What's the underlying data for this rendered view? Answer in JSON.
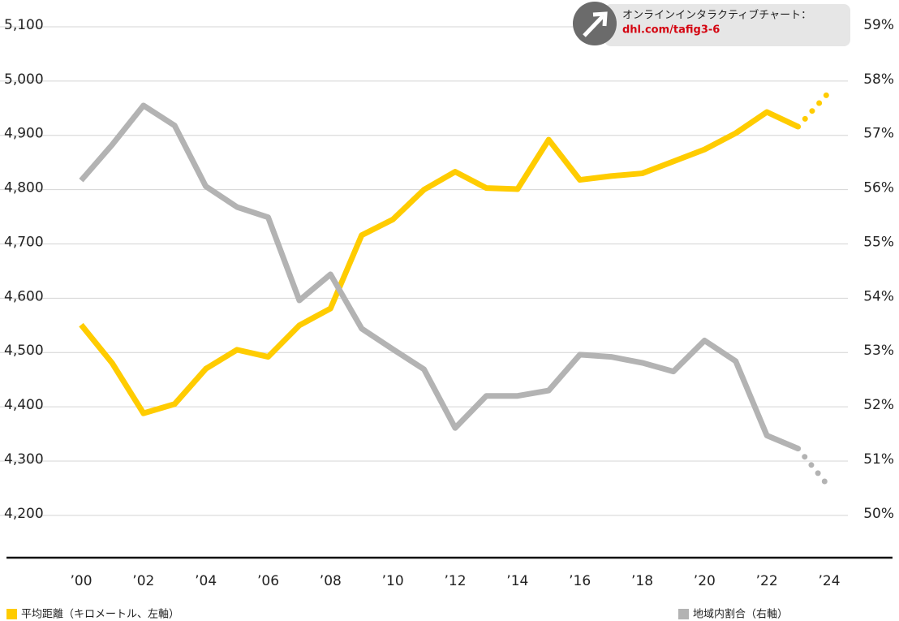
{
  "chart_data": {
    "type": "line",
    "x": [
      2000,
      2001,
      2002,
      2003,
      2004,
      2005,
      2006,
      2007,
      2008,
      2009,
      2010,
      2011,
      2012,
      2013,
      2014,
      2015,
      2016,
      2017,
      2018,
      2019,
      2020,
      2021,
      2022,
      2023,
      2024
    ],
    "series": [
      {
        "name": "平均距離（キロメートル、左軸）",
        "color": "#ffcc00",
        "axis": "y",
        "values": [
          4551,
          4480,
          4388,
          4405,
          4470,
          4505,
          4492,
          4550,
          4581,
          4716,
          4745,
          4800,
          4833,
          4803,
          4801,
          4892,
          4818,
          4825,
          4830,
          4852,
          4874,
          4904,
          4943,
          4916,
          4980
        ]
      },
      {
        "name": "地域内割合（右軸）",
        "color": "#b3b3b3",
        "axis": "y2",
        "values": [
          56.17,
          56.83,
          57.55,
          57.18,
          56.06,
          55.68,
          55.49,
          53.96,
          54.44,
          53.44,
          53.06,
          52.69,
          51.61,
          52.2,
          52.2,
          52.3,
          52.96,
          52.92,
          52.81,
          52.65,
          53.22,
          52.84,
          51.47,
          51.23,
          50.52
        ]
      }
    ],
    "dotted_from": 2023,
    "xlim": [
      2000,
      2024
    ],
    "xticks": [
      {
        "value": 2000,
        "label": "’00"
      },
      {
        "value": 2002,
        "label": "’02"
      },
      {
        "value": 2004,
        "label": "’04"
      },
      {
        "value": 2006,
        "label": "’06"
      },
      {
        "value": 2008,
        "label": "’08"
      },
      {
        "value": 2010,
        "label": "’10"
      },
      {
        "value": 2012,
        "label": "’12"
      },
      {
        "value": 2014,
        "label": "’14"
      },
      {
        "value": 2016,
        "label": "’16"
      },
      {
        "value": 2018,
        "label": "’18"
      },
      {
        "value": 2020,
        "label": "’20"
      },
      {
        "value": 2022,
        "label": "’22"
      },
      {
        "value": 2024,
        "label": "’24"
      }
    ],
    "ylim": [
      4122,
      5100
    ],
    "yticks": [
      {
        "value": 4200,
        "label": "4,200"
      },
      {
        "value": 4300,
        "label": "4,300"
      },
      {
        "value": 4400,
        "label": "4,400"
      },
      {
        "value": 4500,
        "label": "4,500"
      },
      {
        "value": 4600,
        "label": "4,600"
      },
      {
        "value": 4700,
        "label": "4,700"
      },
      {
        "value": 4800,
        "label": "4,800"
      },
      {
        "value": 4900,
        "label": "4,900"
      },
      {
        "value": 5000,
        "label": "5,000"
      },
      {
        "value": 5100,
        "label": "5,100"
      }
    ],
    "y2lim": [
      49.22,
      59
    ],
    "y2ticks": [
      {
        "value": 50,
        "label": "50%"
      },
      {
        "value": 51,
        "label": "51%"
      },
      {
        "value": 52,
        "label": "52%"
      },
      {
        "value": 53,
        "label": "53%"
      },
      {
        "value": 54,
        "label": "54%"
      },
      {
        "value": 55,
        "label": "55%"
      },
      {
        "value": 56,
        "label": "56%"
      },
      {
        "value": 57,
        "label": "57%"
      },
      {
        "value": 58,
        "label": "58%"
      },
      {
        "value": 59,
        "label": "59%"
      }
    ],
    "grid": true,
    "link_label": "オンラインインタラクティブチャート：",
    "link_url": "dhl.com/tafig3-6"
  }
}
